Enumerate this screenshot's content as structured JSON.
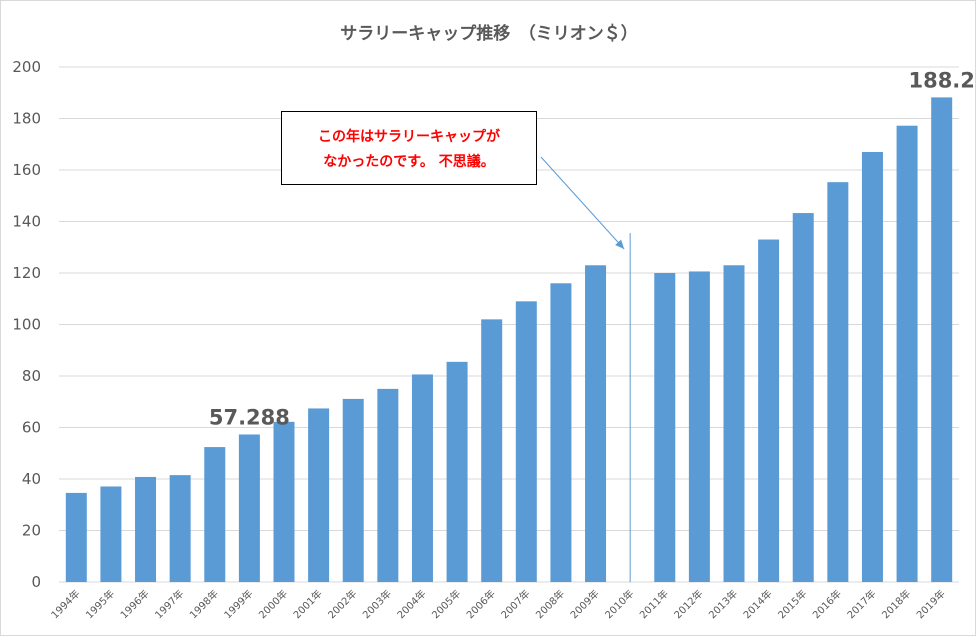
{
  "chart_data": {
    "type": "bar",
    "title": "サラリーキャップ推移　（ミリオン＄）",
    "categories": [
      "1994年",
      "1995年",
      "1996年",
      "1997年",
      "1998年",
      "1999年",
      "2000年",
      "2001年",
      "2002年",
      "2003年",
      "2004年",
      "2005年",
      "2006年",
      "2007年",
      "2008年",
      "2009年",
      "2010年",
      "2011年",
      "2012年",
      "2013年",
      "2014年",
      "2015年",
      "2016年",
      "2017年",
      "2018年",
      "2019年"
    ],
    "values": [
      34.6,
      37.1,
      40.8,
      41.5,
      52.4,
      57.288,
      62.2,
      67.4,
      71.1,
      75.0,
      80.6,
      85.5,
      102.0,
      109.0,
      116.0,
      123.0,
      null,
      120.0,
      120.6,
      123.0,
      133.0,
      143.28,
      155.27,
      167.0,
      177.2,
      188.2
    ],
    "ylim": [
      0,
      200
    ],
    "yticks": [
      0,
      20,
      40,
      60,
      80,
      100,
      120,
      140,
      160,
      180,
      200
    ],
    "grid": true,
    "colors": {
      "bar": "#5b9bd5",
      "grid": "#d9d9d9",
      "tick_text": "#595959",
      "annotation_text": "#ff0000",
      "arrow": "#5b9bd5"
    },
    "data_labels": [
      {
        "category": "1999年",
        "text": "57.288"
      },
      {
        "category": "2019年",
        "text": "188.2"
      }
    ],
    "annotation": {
      "lines": [
        "この年はサラリーキャップが",
        "なかったのです。 不思議。"
      ],
      "target_category": "2010年"
    }
  }
}
